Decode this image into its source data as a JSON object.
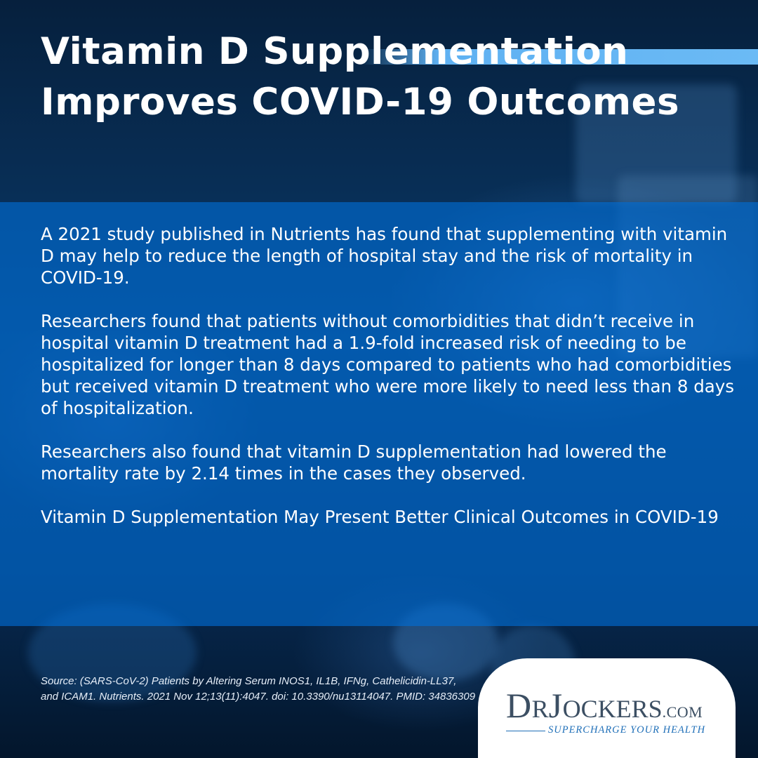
{
  "title": "Vitamin D Supplementation Improves COVID-19 Outcomes",
  "paragraphs": [
    "A 2021 study published in Nutrients has found that supplementing with vitamin D may help to reduce the length of hospital stay and the risk of mortality in COVID-19.",
    "Researchers found that patients without comorbidities that didn’t receive in hospital vitamin D treatment had a 1.9-fold increased risk of needing to be hospitalized for longer than 8 days compared to patients who had comorbidities but received vitamin D treatment who were more likely to need less than 8 days of hospitalization.",
    "Researchers also found that vitamin D supplementation had lowered the mortality rate by 2.14 times in the cases they observed.",
    "Vitamin D Supplementation May Present Better Clinical Outcomes in COVID-19"
  ],
  "source": "Source: (SARS-CoV-2) Patients by Altering Serum INOS1, IL1B, IFNg, Cathelicidin-LL37, and ICAM1. Nutrients. 2021 Nov 12;13(11):4047. doi: 10.3390/nu13114047. PMID: 34836309",
  "logo": {
    "dr_d": "D",
    "dr_r": "R",
    "jockers_j": "J",
    "jockers_rest": "OCKERS",
    "dotcom": ".COM",
    "tagline": "SUPERCHARGE YOUR HEALTH"
  },
  "colors": {
    "panel": "#006ed7",
    "accent_bar": "#5fb1f2",
    "logo_text": "#3c4f63",
    "tagline": "#1f6fb8"
  }
}
